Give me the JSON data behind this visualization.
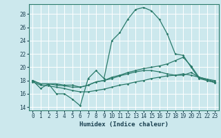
{
  "xlabel": "Humidex (Indice chaleur)",
  "bg_color": "#cce8ed",
  "grid_color": "#ffffff",
  "line_color": "#2a7a6a",
  "xlim": [
    -0.5,
    23.5
  ],
  "ylim": [
    13.5,
    29.5
  ],
  "yticks": [
    14,
    16,
    18,
    20,
    22,
    24,
    26,
    28
  ],
  "xticks": [
    0,
    1,
    2,
    3,
    4,
    5,
    6,
    7,
    8,
    9,
    10,
    11,
    12,
    13,
    14,
    15,
    16,
    17,
    18,
    19,
    20,
    21,
    22,
    23
  ],
  "series": [
    {
      "x": [
        0,
        1,
        2,
        3,
        4,
        5,
        6,
        7,
        8,
        9,
        10,
        11,
        12,
        13,
        14,
        15,
        16,
        17,
        18,
        19,
        20,
        21,
        22,
        23
      ],
      "y": [
        18.0,
        16.8,
        17.5,
        16.0,
        16.0,
        15.2,
        14.2,
        18.3,
        19.5,
        18.3,
        24.0,
        25.2,
        27.2,
        28.7,
        29.0,
        28.5,
        27.2,
        25.0,
        22.0,
        21.8,
        20.0,
        18.3,
        18.0,
        17.7
      ]
    },
    {
      "x": [
        0,
        1,
        2,
        3,
        4,
        5,
        6,
        7,
        8,
        9,
        10,
        11,
        12,
        13,
        14,
        15,
        16,
        17,
        18,
        19,
        20,
        21,
        22,
        23
      ],
      "y": [
        18.0,
        17.5,
        17.5,
        17.5,
        17.3,
        17.3,
        17.0,
        17.3,
        17.8,
        18.0,
        18.5,
        18.8,
        19.2,
        19.5,
        19.8,
        20.0,
        20.2,
        20.5,
        21.0,
        21.5,
        20.2,
        18.5,
        18.0,
        17.7
      ]
    },
    {
      "x": [
        0,
        1,
        2,
        3,
        4,
        5,
        6,
        7,
        8,
        9,
        10,
        11,
        12,
        13,
        14,
        15,
        16,
        17,
        18,
        19,
        20,
        21,
        22,
        23
      ],
      "y": [
        18.0,
        17.5,
        17.5,
        17.3,
        17.2,
        17.0,
        17.0,
        17.3,
        17.8,
        18.0,
        18.3,
        18.7,
        19.0,
        19.3,
        19.5,
        19.5,
        19.3,
        19.0,
        18.8,
        18.8,
        19.2,
        18.5,
        18.2,
        18.0
      ]
    },
    {
      "x": [
        0,
        1,
        2,
        3,
        4,
        5,
        6,
        7,
        8,
        9,
        10,
        11,
        12,
        13,
        14,
        15,
        16,
        17,
        18,
        19,
        20,
        21,
        22,
        23
      ],
      "y": [
        17.8,
        17.3,
        17.2,
        17.0,
        16.8,
        16.5,
        16.3,
        16.3,
        16.5,
        16.7,
        17.0,
        17.3,
        17.5,
        17.8,
        18.0,
        18.3,
        18.5,
        18.7,
        18.8,
        19.0,
        18.8,
        18.5,
        18.2,
        17.8
      ]
    }
  ]
}
